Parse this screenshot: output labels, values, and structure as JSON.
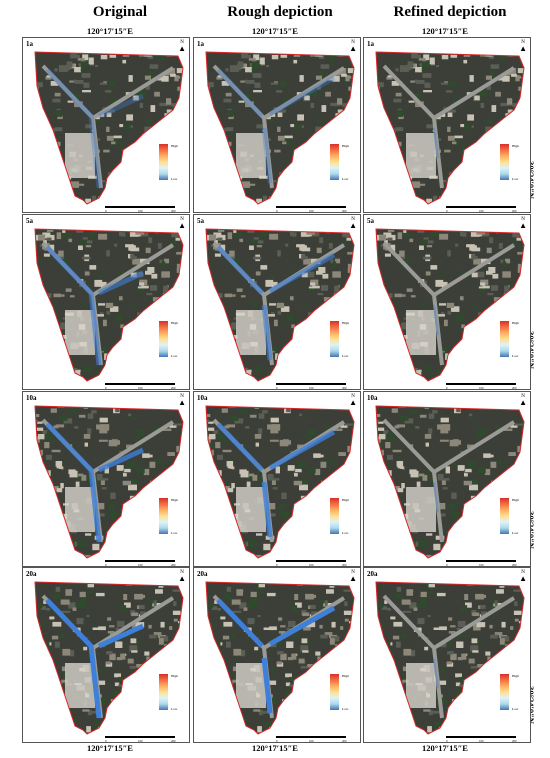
{
  "columns": [
    "Original",
    "Rough depiction",
    "Refined depiction"
  ],
  "longitude_label": "120°17′15″E",
  "latitude_label": "30°24′0″N",
  "rows": [
    "1a",
    "5a",
    "10a",
    "20a"
  ],
  "legend": {
    "high": "High",
    "low": "Low"
  },
  "north_label": "N",
  "scale_ticks": [
    "0",
    "100",
    "200"
  ],
  "colors": {
    "boundary": "#d62728",
    "road_highlight": "#3d7fd9",
    "legend_high": "#d73027",
    "legend_low": "#4575b4"
  }
}
